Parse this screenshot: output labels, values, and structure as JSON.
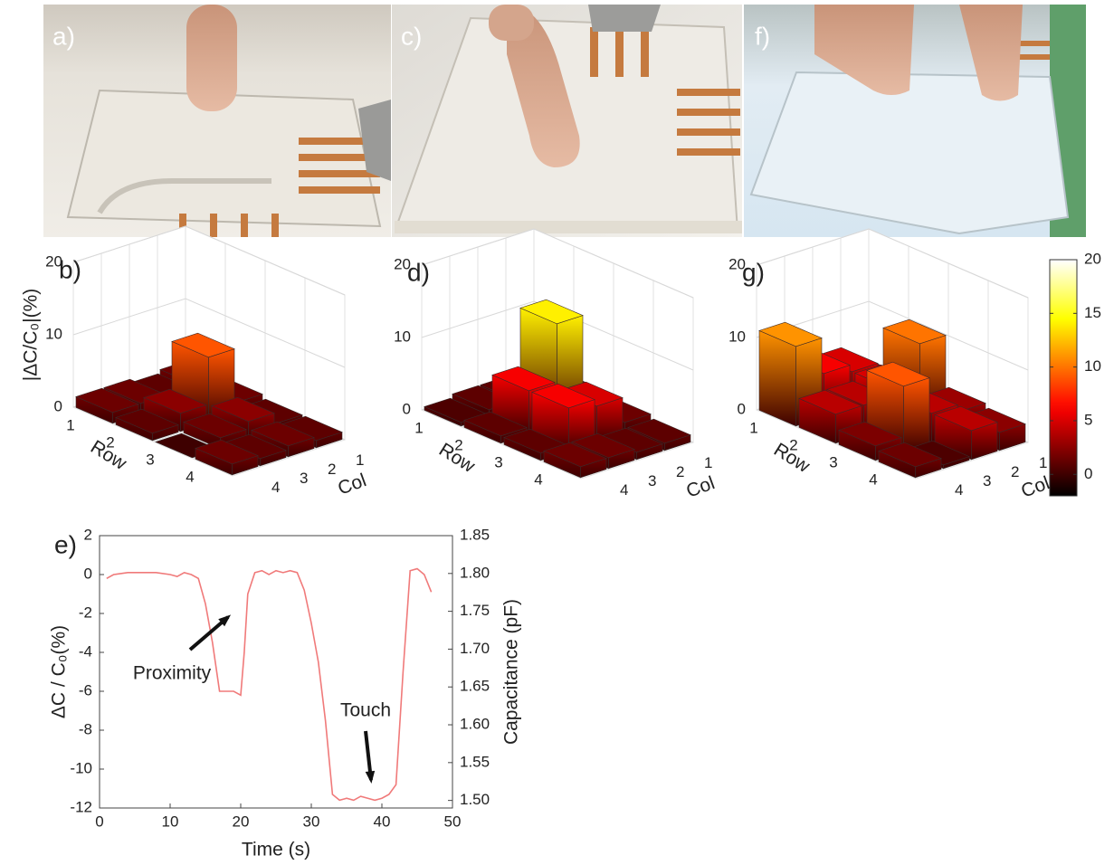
{
  "photos": [
    {
      "label": "a)"
    },
    {
      "label": "c)"
    },
    {
      "label": "f)"
    }
  ],
  "chart_data": [
    {
      "type": "bar3d",
      "label": "b)",
      "zlabel": "|ΔC/C₀|(%)",
      "xlabel": "Row",
      "ylabel": "Col",
      "rows": [
        "1",
        "2",
        "3",
        "4"
      ],
      "cols": [
        "1",
        "2",
        "3",
        "4"
      ],
      "values": [
        [
          1.5,
          1,
          1.5,
          1.5
        ],
        [
          1.5,
          9,
          2.5,
          1
        ],
        [
          1,
          2.5,
          1.5,
          0
        ],
        [
          1,
          1.5,
          1,
          1.5
        ]
      ],
      "zlim": [
        0,
        20
      ],
      "zticks": [
        0,
        10,
        20
      ]
    },
    {
      "type": "bar3d",
      "label": "d)",
      "xlabel": "Row",
      "ylabel": "Col",
      "rows": [
        "1",
        "2",
        "3",
        "4"
      ],
      "cols": [
        "1",
        "2",
        "3",
        "4"
      ],
      "values": [
        [
          1,
          1,
          1,
          0.5
        ],
        [
          2,
          14,
          6,
          1
        ],
        [
          1.5,
          5,
          6,
          1
        ],
        [
          1,
          1,
          1.5,
          1.5
        ]
      ],
      "zlim": [
        0,
        20
      ],
      "zticks": [
        0,
        10,
        20
      ]
    },
    {
      "type": "bar3d",
      "label": "g)",
      "xlabel": "Row",
      "ylabel": "Col",
      "rows": [
        "1",
        "2",
        "3",
        "4"
      ],
      "cols": [
        "1",
        "2",
        "3",
        "4"
      ],
      "values": [
        [
          2,
          5,
          6,
          11
        ],
        [
          10,
          5,
          4,
          4
        ],
        [
          3,
          4,
          9,
          2
        ],
        [
          2.5,
          4,
          0.5,
          1.5
        ]
      ],
      "zlim": [
        0,
        20
      ],
      "zticks": [
        0,
        10,
        20
      ]
    },
    {
      "type": "colorbar",
      "clim": [
        -2,
        20
      ],
      "cticks": [
        0,
        5,
        10,
        15,
        20
      ]
    },
    {
      "type": "line",
      "label": "e)",
      "xlabel": "Time (s)",
      "ylabel": "ΔC / C₀(%)",
      "y2label": "Capacitance (pF)",
      "color": "#f07a7a",
      "x": [
        1,
        2,
        4,
        6,
        8,
        10,
        11,
        12,
        13,
        14,
        15,
        16,
        17,
        18,
        19,
        20,
        20.5,
        21,
        22,
        23,
        24,
        25,
        26,
        27,
        28,
        29,
        30,
        31,
        32,
        33,
        34,
        35,
        36,
        37,
        38,
        39,
        40,
        41,
        42,
        43,
        44,
        45,
        46,
        47
      ],
      "values": [
        -0.2,
        0,
        0.1,
        0.1,
        0.1,
        0,
        -0.1,
        0.1,
        0,
        -0.2,
        -1.5,
        -3.5,
        -6,
        -6,
        -6,
        -6.2,
        -4,
        -1,
        0.1,
        0.2,
        0,
        0.2,
        0.1,
        0.2,
        0.1,
        -0.8,
        -2.5,
        -4.5,
        -7.5,
        -11.3,
        -11.6,
        -11.5,
        -11.6,
        -11.4,
        -11.5,
        -11.6,
        -11.5,
        -11.3,
        -10.8,
        -5,
        0.2,
        0.3,
        0,
        -0.9
      ],
      "xlim": [
        0,
        50
      ],
      "xticks": [
        0,
        10,
        20,
        30,
        40,
        50
      ],
      "ylim": [
        -12,
        2
      ],
      "yticks": [
        -12,
        -10,
        -8,
        -6,
        -4,
        -2,
        0,
        2
      ],
      "y2lim": [
        1.49,
        1.85
      ],
      "y2ticks": [
        {
          "value": 1.5,
          "label": "1.50"
        },
        1.55,
        {
          "value": 1.6,
          "label": "1.60"
        },
        1.65,
        {
          "value": 1.7,
          "label": "1.70"
        },
        1.75,
        {
          "value": 1.8,
          "label": "1.80"
        },
        1.85
      ],
      "annotations": [
        {
          "text": "Proximity"
        },
        {
          "text": "Touch"
        }
      ]
    }
  ]
}
